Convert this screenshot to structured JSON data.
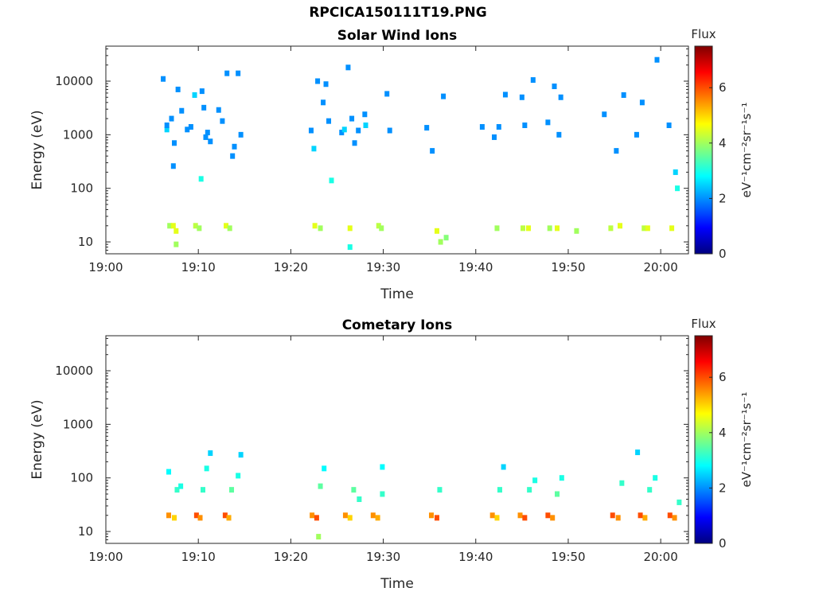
{
  "title": "RPCICA150111T19.PNG",
  "colormap": [
    "#00007f",
    "#0000ff",
    "#007fff",
    "#00ffff",
    "#7fff7f",
    "#ffff00",
    "#ff7f00",
    "#ff0000",
    "#7f0000"
  ],
  "chart_data": [
    {
      "type": "heatmap",
      "title": "Solar Wind Ions",
      "xlabel": "Time",
      "ylabel": "Energy (eV)",
      "yscale": "log",
      "xlim": [
        "19:00",
        "20:03"
      ],
      "ylim": [
        6,
        45000
      ],
      "xticks": [
        "19:00",
        "19:10",
        "19:20",
        "19:30",
        "19:40",
        "19:50",
        "20:00"
      ],
      "yticks": [
        "10",
        "100",
        "1000",
        "10000"
      ],
      "colorbar": {
        "title": "Flux",
        "label": "eV⁻¹cm⁻²sr⁻¹s⁻¹",
        "range": [
          0,
          7.5
        ],
        "ticks": [
          "0",
          "2",
          "4",
          "6"
        ]
      },
      "grid": false,
      "cells": [
        [
          6.6,
          1250,
          2.5
        ],
        [
          6.6,
          1500,
          2
        ],
        [
          6.2,
          11000,
          2
        ],
        [
          7.1,
          2000,
          2
        ],
        [
          6.9,
          20,
          4
        ],
        [
          7.3,
          20,
          4.5
        ],
        [
          7.6,
          9,
          4
        ],
        [
          7.6,
          16,
          4.5
        ],
        [
          7.4,
          700,
          2
        ],
        [
          7.8,
          7000,
          2
        ],
        [
          7.3,
          260,
          2
        ],
        [
          8.2,
          2800,
          2
        ],
        [
          8.8,
          1250,
          2
        ],
        [
          9.2,
          1400,
          2
        ],
        [
          9.6,
          5500,
          2.5
        ],
        [
          9.7,
          20,
          4.2
        ],
        [
          10.1,
          18,
          4
        ],
        [
          10.3,
          150,
          3
        ],
        [
          10.4,
          6500,
          2
        ],
        [
          10.6,
          3200,
          2
        ],
        [
          10.8,
          900,
          2
        ],
        [
          11.0,
          1100,
          2
        ],
        [
          11.3,
          750,
          2
        ],
        [
          12.2,
          2900,
          2
        ],
        [
          12.6,
          1800,
          2
        ],
        [
          13.1,
          14000,
          2
        ],
        [
          13.0,
          20,
          4.5
        ],
        [
          13.4,
          18,
          4
        ],
        [
          13.7,
          400,
          2
        ],
        [
          13.9,
          600,
          2
        ],
        [
          14.3,
          14000,
          2
        ],
        [
          14.6,
          1000,
          2
        ],
        [
          22.2,
          1200,
          2
        ],
        [
          22.5,
          550,
          2.5
        ],
        [
          22.6,
          20,
          4.5
        ],
        [
          22.9,
          10000,
          2
        ],
        [
          23.2,
          18,
          4
        ],
        [
          23.5,
          4000,
          2
        ],
        [
          23.8,
          8800,
          2
        ],
        [
          24.1,
          1800,
          2
        ],
        [
          24.4,
          140,
          3
        ],
        [
          25.5,
          1100,
          2
        ],
        [
          25.8,
          1250,
          2.5
        ],
        [
          26.2,
          18000,
          2
        ],
        [
          26.4,
          8,
          3
        ],
        [
          26.4,
          18,
          4.5
        ],
        [
          26.6,
          2000,
          2
        ],
        [
          26.9,
          700,
          2
        ],
        [
          27.3,
          1200,
          2
        ],
        [
          28.0,
          2400,
          2
        ],
        [
          28.1,
          1500,
          2.5
        ],
        [
          29.5,
          20,
          4.2
        ],
        [
          29.8,
          18,
          4
        ],
        [
          30.4,
          5800,
          2
        ],
        [
          30.7,
          1200,
          2
        ],
        [
          34.7,
          1350,
          2
        ],
        [
          35.3,
          500,
          2
        ],
        [
          35.8,
          16,
          4.5
        ],
        [
          36.2,
          10,
          4
        ],
        [
          36.5,
          5200,
          2
        ],
        [
          36.8,
          12,
          3.8
        ],
        [
          40.7,
          1400,
          2
        ],
        [
          42.0,
          900,
          2
        ],
        [
          42.3,
          18,
          4
        ],
        [
          42.5,
          1400,
          2
        ],
        [
          43.2,
          5600,
          2
        ],
        [
          45.0,
          5000,
          2
        ],
        [
          45.1,
          18,
          4.2
        ],
        [
          45.3,
          1500,
          2
        ],
        [
          45.7,
          18,
          4.5
        ],
        [
          46.2,
          10500,
          2
        ],
        [
          47.8,
          1700,
          2
        ],
        [
          48.0,
          18,
          4
        ],
        [
          48.5,
          8000,
          2
        ],
        [
          48.8,
          18,
          4.5
        ],
        [
          49.0,
          1000,
          2
        ],
        [
          49.2,
          5000,
          2
        ],
        [
          50.9,
          16,
          4
        ],
        [
          53.9,
          2400,
          2
        ],
        [
          54.6,
          18,
          4.2
        ],
        [
          55.2,
          500,
          2
        ],
        [
          55.6,
          20,
          4.5
        ],
        [
          56.0,
          5500,
          2
        ],
        [
          57.4,
          1000,
          2
        ],
        [
          58.0,
          4000,
          2
        ],
        [
          58.2,
          18,
          4.2
        ],
        [
          58.6,
          18,
          4.5
        ],
        [
          59.6,
          25000,
          2
        ],
        [
          60.9,
          1500,
          2
        ],
        [
          61.2,
          18,
          4.5
        ],
        [
          61.6,
          200,
          2.5
        ],
        [
          61.8,
          100,
          3
        ]
      ]
    },
    {
      "type": "heatmap",
      "title": "Cometary Ions",
      "xlabel": "Time",
      "ylabel": "Energy (eV)",
      "yscale": "log",
      "xlim": [
        "19:00",
        "20:03"
      ],
      "ylim": [
        6,
        45000
      ],
      "xticks": [
        "19:00",
        "19:10",
        "19:20",
        "19:30",
        "19:40",
        "19:50",
        "20:00"
      ],
      "yticks": [
        "10",
        "100",
        "1000",
        "10000"
      ],
      "colorbar": {
        "title": "Flux",
        "label": "eV⁻¹cm⁻²sr⁻¹s⁻¹",
        "range": [
          0,
          7.5
        ],
        "ticks": [
          "0",
          "2",
          "4",
          "6"
        ]
      },
      "grid": false,
      "cells": [
        [
          6.8,
          20,
          5.5
        ],
        [
          7.4,
          18,
          5
        ],
        [
          7.7,
          60,
          3.2
        ],
        [
          8.1,
          70,
          3
        ],
        [
          6.8,
          130,
          2.8
        ],
        [
          9.8,
          20,
          6
        ],
        [
          10.2,
          18,
          5.5
        ],
        [
          10.5,
          60,
          3.2
        ],
        [
          10.9,
          150,
          3
        ],
        [
          11.3,
          290,
          2.5
        ],
        [
          12.9,
          20,
          6
        ],
        [
          13.3,
          18,
          5.3
        ],
        [
          13.6,
          60,
          3.5
        ],
        [
          14.3,
          110,
          3
        ],
        [
          14.6,
          270,
          2.5
        ],
        [
          22.3,
          20,
          5.5
        ],
        [
          22.8,
          18,
          6
        ],
        [
          23.2,
          70,
          3.5
        ],
        [
          23.6,
          150,
          2.8
        ],
        [
          23.0,
          8,
          4
        ],
        [
          25.9,
          20,
          5.5
        ],
        [
          26.4,
          18,
          5
        ],
        [
          26.8,
          60,
          3.5
        ],
        [
          27.4,
          40,
          3.2
        ],
        [
          28.9,
          20,
          5.5
        ],
        [
          29.4,
          18,
          5.3
        ],
        [
          29.9,
          50,
          3.2
        ],
        [
          29.9,
          160,
          2.8
        ],
        [
          35.2,
          20,
          5.5
        ],
        [
          35.8,
          18,
          6
        ],
        [
          36.1,
          60,
          3.2
        ],
        [
          41.8,
          20,
          5.5
        ],
        [
          42.3,
          18,
          5
        ],
        [
          42.6,
          60,
          3.2
        ],
        [
          43.0,
          160,
          2.5
        ],
        [
          44.8,
          20,
          5.5
        ],
        [
          45.3,
          18,
          6
        ],
        [
          45.8,
          60,
          3.2
        ],
        [
          46.4,
          90,
          3
        ],
        [
          47.8,
          20,
          6
        ],
        [
          48.3,
          18,
          5.5
        ],
        [
          48.8,
          50,
          3.5
        ],
        [
          49.3,
          100,
          3
        ],
        [
          54.8,
          20,
          6
        ],
        [
          55.4,
          18,
          5.5
        ],
        [
          55.8,
          80,
          3.2
        ],
        [
          57.5,
          300,
          2.5
        ],
        [
          57.8,
          20,
          6
        ],
        [
          58.3,
          18,
          5.3
        ],
        [
          58.8,
          60,
          3.2
        ],
        [
          59.4,
          100,
          3
        ],
        [
          61.0,
          20,
          6
        ],
        [
          61.5,
          18,
          5.5
        ],
        [
          62.0,
          35,
          3.2
        ]
      ]
    }
  ]
}
